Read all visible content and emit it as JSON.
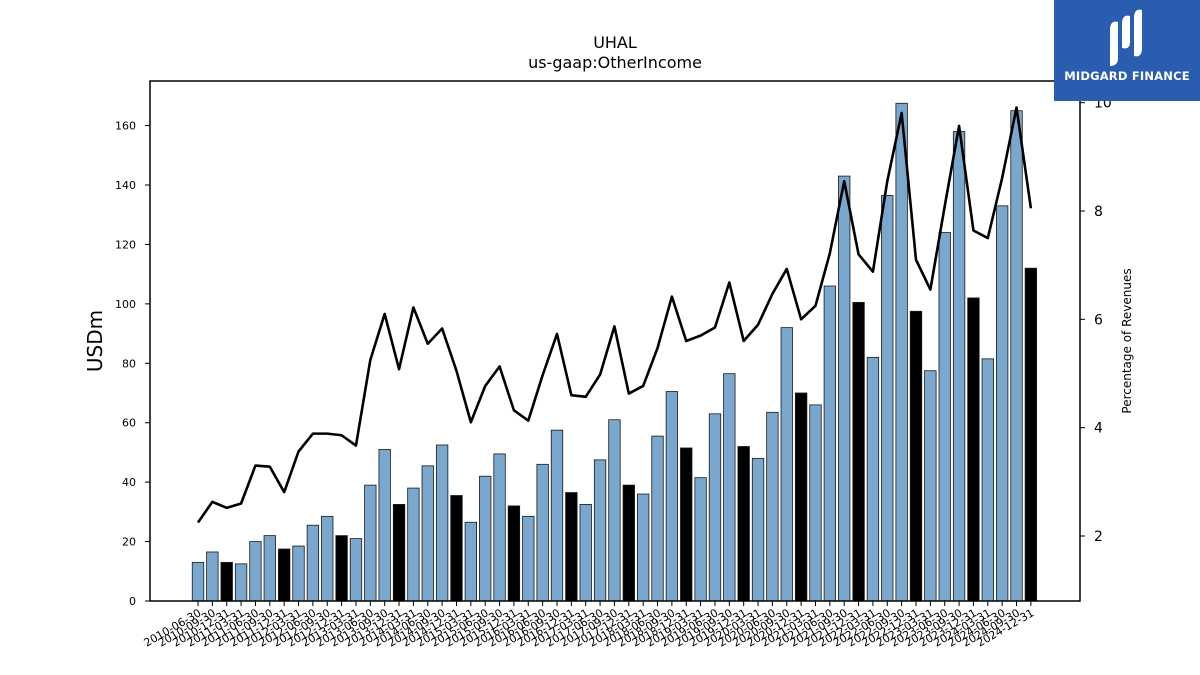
{
  "chart_data": {
    "type": "bar",
    "title": "UHAL",
    "subtitle": "us-gaap:OtherIncome",
    "ylabel": "USDm",
    "y2label": "Percentage of Revenues",
    "ylim": [
      0,
      175
    ],
    "y2lim": [
      0.8,
      10.4
    ],
    "yticks": [
      0,
      20,
      40,
      60,
      80,
      100,
      120,
      140,
      160
    ],
    "y2ticks": [
      2,
      4,
      6,
      8,
      10
    ],
    "grid": false,
    "colors": {
      "bar": "#7aa7cd",
      "bar_highlight": "#000000",
      "line": "#000000",
      "edge": "#1a1a1a"
    },
    "categories": [
      "2010-06-30",
      "2010-09-30",
      "2010-12-31",
      "2011-03-31",
      "2011-06-30",
      "2011-09-30",
      "2011-12-31",
      "2012-03-31",
      "2012-06-30",
      "2012-09-30",
      "2012-12-31",
      "2013-03-31",
      "2013-06-30",
      "2013-09-30",
      "2013-12-31",
      "2014-03-31",
      "2014-06-30",
      "2014-09-30",
      "2014-12-31",
      "2015-03-31",
      "2015-06-30",
      "2015-09-30",
      "2015-12-31",
      "2016-03-31",
      "2016-06-30",
      "2016-09-30",
      "2016-12-31",
      "2017-03-31",
      "2017-06-30",
      "2017-09-30",
      "2017-12-31",
      "2018-03-31",
      "2018-06-30",
      "2018-09-30",
      "2018-12-31",
      "2019-03-31",
      "2019-06-30",
      "2019-09-30",
      "2019-12-31",
      "2020-03-31",
      "2020-06-30",
      "2020-09-30",
      "2020-12-31",
      "2021-03-31",
      "2021-06-30",
      "2021-09-30",
      "2021-12-31",
      "2022-03-31",
      "2022-06-30",
      "2022-09-30",
      "2022-12-31",
      "2023-03-31",
      "2023-06-30",
      "2023-09-30",
      "2023-12-31",
      "2024-03-31",
      "2024-06-30",
      "2024-09-30",
      "2024-12-31"
    ],
    "xtick_labels": [
      "2010-06-30",
      "2010-09-30",
      "2010-12-31",
      "2011-03-31",
      "2011-06-30",
      "2011-09-30",
      "2011-12-31",
      "2012-03-31",
      "2012-06-30",
      "2012-09-30",
      "2012-12-31",
      "2013-03-31",
      "2013-06-30",
      "2013-09-30",
      "2013-12-31",
      "2014-03-31",
      "2014-06-30",
      "2014-09-30",
      "2014-12-31",
      "2015-03-31",
      "2015-06-30",
      "2015-09-30",
      "2015-12-31",
      "2016-03-31",
      "2016-06-30",
      "2016-09-30",
      "2016-12-31",
      "2017-03-31",
      "2017-06-30",
      "2017-09-30",
      "2017-12-31",
      "2018-03-31",
      "2018-06-30",
      "2018-09-30",
      "2018-12-31",
      "2019-03-31",
      "2019-06-30",
      "2019-09-30",
      "2019-12-31",
      "2020-03-31",
      "2020-06-30",
      "2020-09-30",
      "2020-12-31",
      "2021-03-31",
      "2021-06-30",
      "2021-09-30",
      "2021-12-31",
      "2022-03-31",
      "2022-06-30",
      "2022-09-30",
      "2022-12-31",
      "2023-03-31",
      "2023-06-30",
      "2023-09-30",
      "2023-12-31",
      "2024-03-31",
      "2024-06-30",
      "2024-09-30",
      "2024-12-31"
    ],
    "series": [
      {
        "kind": "bar",
        "axis": "left",
        "values": [
          13,
          16.5,
          13,
          12.5,
          20,
          22,
          17.5,
          18.5,
          25.5,
          28.5,
          22,
          21,
          39,
          51,
          32.5,
          38,
          45.5,
          52.5,
          35.5,
          26.5,
          42,
          49.5,
          32,
          28.5,
          46,
          57.5,
          36.5,
          32.5,
          47.5,
          61,
          39,
          36,
          55.5,
          70.5,
          51.5,
          41.5,
          63,
          76.5,
          52,
          48,
          63.5,
          92,
          70,
          66,
          106,
          143,
          100.5,
          82,
          136.5,
          167.5,
          97.5,
          77.5,
          124,
          158,
          102,
          81.5,
          133,
          165,
          112
        ],
        "highlighted": [
          false,
          false,
          true,
          false,
          false,
          false,
          true,
          false,
          false,
          false,
          true,
          false,
          false,
          false,
          true,
          false,
          false,
          false,
          true,
          false,
          false,
          false,
          true,
          false,
          false,
          false,
          true,
          false,
          false,
          false,
          true,
          false,
          false,
          false,
          true,
          false,
          false,
          false,
          true,
          false,
          false,
          false,
          true,
          false,
          false,
          false,
          true,
          false,
          false,
          false,
          true,
          false,
          false,
          false,
          true,
          false,
          false,
          false,
          true
        ]
      },
      {
        "kind": "line",
        "axis": "right",
        "values": [
          2.25,
          2.63,
          2.52,
          2.6,
          3.3,
          3.28,
          2.81,
          3.56,
          3.89,
          3.89,
          3.86,
          3.67,
          5.25,
          6.1,
          5.08,
          6.22,
          5.55,
          5.83,
          5.05,
          4.1,
          4.77,
          5.13,
          4.32,
          4.13,
          4.97,
          5.73,
          4.6,
          4.57,
          4.98,
          5.87,
          4.63,
          4.77,
          5.47,
          6.42,
          5.6,
          5.7,
          5.85,
          6.68,
          5.6,
          5.9,
          6.47,
          6.93,
          6.0,
          6.25,
          7.22,
          8.55,
          7.2,
          6.88,
          8.55,
          9.81,
          7.1,
          6.55,
          8.09,
          9.57,
          7.64,
          7.5,
          8.61,
          9.91,
          8.05
        ]
      }
    ]
  },
  "branding": {
    "logo_text": "MIDGARD FINANCE",
    "logo_color": "#2a5db0"
  }
}
